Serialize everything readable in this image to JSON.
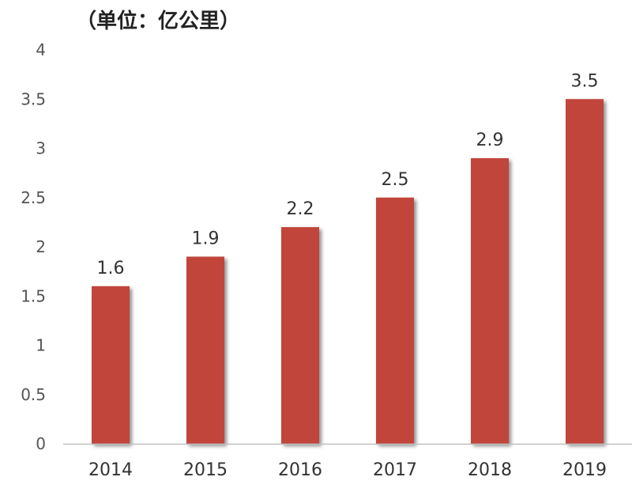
{
  "chart_data": {
    "type": "bar",
    "unit_label": "（单位：亿公里）",
    "categories": [
      "2014",
      "2015",
      "2016",
      "2017",
      "2018",
      "2019"
    ],
    "values": [
      1.6,
      1.9,
      2.2,
      2.5,
      2.9,
      3.5
    ],
    "data_labels": [
      "1.6",
      "1.9",
      "2.2",
      "2.5",
      "2.9",
      "3.5"
    ],
    "yticks": [
      "0",
      "0.5",
      "1",
      "1.5",
      "2",
      "2.5",
      "3",
      "3.5",
      "4"
    ],
    "ylim": [
      0,
      4
    ],
    "grid": false,
    "bar_color": "#c1443a",
    "axis_color": "#bfbfbf"
  }
}
